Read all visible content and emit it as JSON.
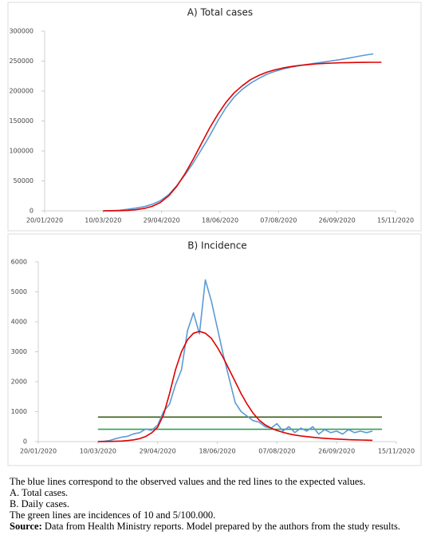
{
  "chart_data": [
    {
      "type": "line",
      "title": "A) Total cases",
      "xlim": [
        "20/01/2020",
        "15/11/2020"
      ],
      "xticks": [
        "20/01/2020",
        "10/03/2020",
        "29/04/2020",
        "18/06/2020",
        "07/08/2020",
        "26/09/2020",
        "15/11/2020"
      ],
      "ylim": [
        0,
        300000
      ],
      "yticks": [
        0,
        50000,
        100000,
        150000,
        200000,
        250000,
        300000
      ],
      "series": [
        {
          "color": "#5b9bd5",
          "x": [
            "10/03/2020",
            "17/03/2020",
            "24/03/2020",
            "31/03/2020",
            "07/04/2020",
            "14/04/2020",
            "21/04/2020",
            "28/04/2020",
            "05/05/2020",
            "12/05/2020",
            "19/05/2020",
            "26/05/2020",
            "02/06/2020",
            "09/06/2020",
            "16/06/2020",
            "23/06/2020",
            "30/06/2020",
            "07/07/2020",
            "14/07/2020",
            "21/07/2020",
            "28/07/2020",
            "04/08/2020",
            "11/08/2020",
            "18/08/2020",
            "25/08/2020",
            "01/09/2020",
            "08/09/2020",
            "15/09/2020",
            "22/09/2020",
            "29/09/2020",
            "06/10/2020",
            "13/10/2020",
            "20/10/2020",
            "27/10/2020"
          ],
          "values": [
            0,
            300,
            1000,
            2500,
            4500,
            7000,
            11000,
            17000,
            27000,
            42000,
            60000,
            80000,
            102000,
            125000,
            150000,
            172000,
            190000,
            203000,
            213000,
            221000,
            228000,
            233000,
            237000,
            240000,
            242500,
            244500,
            246500,
            248500,
            250500,
            252500,
            255000,
            257500,
            260000,
            262000
          ]
        },
        {
          "color": "#e00000",
          "x": [
            "10/03/2020",
            "17/03/2020",
            "24/03/2020",
            "31/03/2020",
            "07/04/2020",
            "14/04/2020",
            "21/04/2020",
            "28/04/2020",
            "05/05/2020",
            "12/05/2020",
            "19/05/2020",
            "26/05/2020",
            "02/06/2020",
            "09/06/2020",
            "16/06/2020",
            "23/06/2020",
            "30/06/2020",
            "07/07/2020",
            "14/07/2020",
            "21/07/2020",
            "28/07/2020",
            "04/08/2020",
            "11/08/2020",
            "18/08/2020",
            "25/08/2020",
            "01/09/2020",
            "08/09/2020",
            "15/09/2020",
            "22/09/2020",
            "29/09/2020",
            "06/10/2020",
            "13/10/2020",
            "20/10/2020",
            "27/10/2020",
            "03/11/2020"
          ],
          "values": [
            0,
            100,
            300,
            800,
            1800,
            3800,
            7500,
            14000,
            25000,
            41000,
            62000,
            86000,
            112000,
            138000,
            161000,
            181000,
            197000,
            209000,
            219000,
            226000,
            231500,
            235500,
            238500,
            241000,
            242800,
            244200,
            245300,
            246100,
            246700,
            247200,
            247500,
            247700,
            247850,
            247950,
            248000
          ]
        }
      ]
    },
    {
      "type": "line",
      "title": "B) Incidence",
      "xlim": [
        "20/01/2020",
        "15/11/2020"
      ],
      "xticks": [
        "20/01/2020",
        "10/03/2020",
        "29/04/2020",
        "18/06/2020",
        "07/08/2020",
        "26/09/2020",
        "15/11/2020"
      ],
      "ylim": [
        0,
        6000
      ],
      "yticks": [
        0,
        1000,
        2000,
        3000,
        4000,
        5000,
        6000
      ],
      "series": [
        {
          "color": "#3b5e16",
          "x": [
            "10/03/2020",
            "03/11/2020"
          ],
          "values": [
            820,
            820
          ]
        },
        {
          "color": "#2ca05c",
          "x": [
            "10/03/2020",
            "03/11/2020"
          ],
          "values": [
            410,
            410
          ]
        },
        {
          "color": "#5b9bd5",
          "x": [
            "10/03/2020",
            "15/03/2020",
            "20/03/2020",
            "25/03/2020",
            "30/03/2020",
            "04/04/2020",
            "09/04/2020",
            "14/04/2020",
            "19/04/2020",
            "24/04/2020",
            "29/04/2020",
            "04/05/2020",
            "09/05/2020",
            "14/05/2020",
            "19/05/2020",
            "24/05/2020",
            "29/05/2020",
            "03/06/2020",
            "08/06/2020",
            "13/06/2020",
            "18/06/2020",
            "23/06/2020",
            "28/06/2020",
            "03/07/2020",
            "08/07/2020",
            "13/07/2020",
            "18/07/2020",
            "23/07/2020",
            "28/07/2020",
            "02/08/2020",
            "07/08/2020",
            "12/08/2020",
            "17/08/2020",
            "22/08/2020",
            "27/08/2020",
            "01/09/2020",
            "06/09/2020",
            "11/09/2020",
            "16/09/2020",
            "21/09/2020",
            "26/09/2020",
            "01/10/2020",
            "06/10/2020",
            "11/10/2020",
            "16/10/2020",
            "21/10/2020",
            "26/10/2020"
          ],
          "values": [
            0,
            10,
            40,
            100,
            150,
            180,
            260,
            300,
            420,
            380,
            550,
            1000,
            1250,
            1900,
            2400,
            3700,
            4300,
            3600,
            5400,
            4700,
            3800,
            2900,
            2100,
            1300,
            1000,
            850,
            700,
            650,
            500,
            450,
            600,
            350,
            500,
            300,
            450,
            350,
            500,
            250,
            400,
            300,
            350,
            250,
            400,
            300,
            350,
            300,
            350
          ]
        },
        {
          "color": "#e00000",
          "x": [
            "10/03/2020",
            "15/03/2020",
            "20/03/2020",
            "25/03/2020",
            "30/03/2020",
            "04/04/2020",
            "09/04/2020",
            "14/04/2020",
            "19/04/2020",
            "24/04/2020",
            "29/04/2020",
            "04/05/2020",
            "09/05/2020",
            "14/05/2020",
            "19/05/2020",
            "24/05/2020",
            "29/05/2020",
            "03/06/2020",
            "08/06/2020",
            "13/06/2020",
            "18/06/2020",
            "23/06/2020",
            "28/06/2020",
            "03/07/2020",
            "08/07/2020",
            "13/07/2020",
            "18/07/2020",
            "23/07/2020",
            "28/07/2020",
            "02/08/2020",
            "07/08/2020",
            "12/08/2020",
            "17/08/2020",
            "22/08/2020",
            "27/08/2020",
            "01/09/2020",
            "06/09/2020",
            "11/09/2020",
            "16/09/2020",
            "21/09/2020",
            "26/09/2020",
            "01/10/2020",
            "06/10/2020",
            "11/10/2020",
            "16/10/2020",
            "21/10/2020",
            "26/10/2020"
          ],
          "values": [
            0,
            2,
            5,
            10,
            20,
            35,
            60,
            100,
            170,
            290,
            480,
            900,
            1600,
            2400,
            3000,
            3400,
            3620,
            3680,
            3620,
            3450,
            3150,
            2800,
            2400,
            2000,
            1600,
            1250,
            950,
            720,
            560,
            450,
            370,
            310,
            260,
            220,
            190,
            165,
            145,
            125,
            110,
            95,
            85,
            75,
            65,
            58,
            52,
            47,
            43
          ]
        }
      ]
    }
  ],
  "caption": {
    "lines": [
      "The blue lines correspond to the observed values and the red lines to the expected values.",
      "A. Total cases.",
      "B. Daily cases.",
      "The green lines are incidences of 10 and 5/100.000."
    ],
    "source_label": "Source:",
    "source_text": "Data from Health Ministry reports. Model prepared by the authors from the study results."
  }
}
